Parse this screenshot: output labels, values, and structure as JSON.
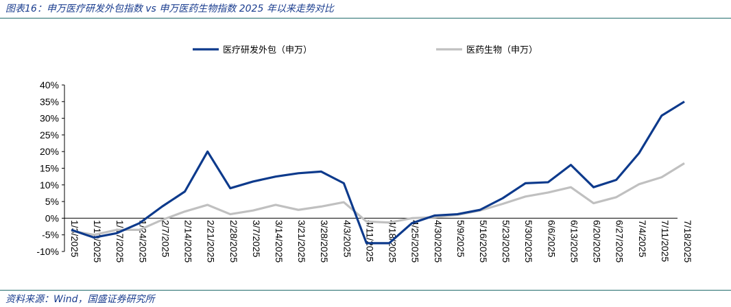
{
  "header": {
    "title": "图表16：申万医疗研发外包指数 vs 申万医药生物指数 2025 年以来走势对比"
  },
  "footer": {
    "source": "资料来源：Wind，国盛证券研究所"
  },
  "chart_data": {
    "type": "line",
    "x": [
      "1/3/2025",
      "1/10/2025",
      "1/17/2025",
      "1/24/2025",
      "2/7/2025",
      "2/14/2025",
      "2/21/2025",
      "2/28/2025",
      "3/7/2025",
      "3/14/2025",
      "3/21/2025",
      "3/28/2025",
      "4/3/2025",
      "4/11/2025",
      "4/18/2025",
      "4/25/2025",
      "4/30/2025",
      "5/9/2025",
      "5/16/2025",
      "5/23/2025",
      "5/30/2025",
      "6/6/2025",
      "6/13/2025",
      "6/20/2025",
      "6/27/2025",
      "7/4/2025",
      "7/11/2025",
      "7/18/2025"
    ],
    "series": [
      {
        "name": "医疗研发外包（申万）",
        "color": "#0d3a8c",
        "values": [
          -3.5,
          -5.8,
          -4.5,
          -1.5,
          3.5,
          8,
          20,
          9,
          11,
          12.5,
          13.5,
          14,
          10.5,
          -7.5,
          -7.5,
          -1.5,
          0.8,
          1.2,
          2.5,
          6,
          10.5,
          10.8,
          16,
          9.3,
          11.5,
          19.5,
          30.8,
          35
        ]
      },
      {
        "name": "医药生物（申万）",
        "color": "#c0c0c0",
        "values": [
          -3.8,
          -5,
          -3.5,
          -3.5,
          -0.5,
          2,
          4,
          1.2,
          2.3,
          4,
          2.5,
          3.5,
          4.8,
          -1,
          -1.3,
          0,
          0.3,
          1,
          2.3,
          4.3,
          6.5,
          7.7,
          9.3,
          4.5,
          6.3,
          10.2,
          12.3,
          16.5
        ]
      }
    ],
    "ylim": [
      -10,
      40
    ],
    "yticks": [
      "-10%",
      "-5%",
      "0%",
      "5%",
      "10%",
      "15%",
      "20%",
      "25%",
      "30%",
      "35%",
      "40%"
    ],
    "legend_position": "top"
  }
}
